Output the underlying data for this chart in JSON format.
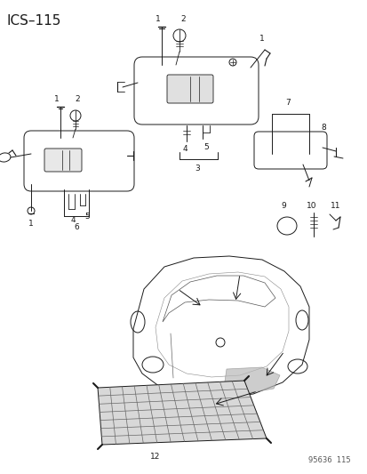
{
  "title": "ICS–115",
  "footnote": "95636  115",
  "bg_color": "#ffffff",
  "lc": "#1a1a1a",
  "title_fontsize": 11,
  "footnote_fontsize": 6
}
